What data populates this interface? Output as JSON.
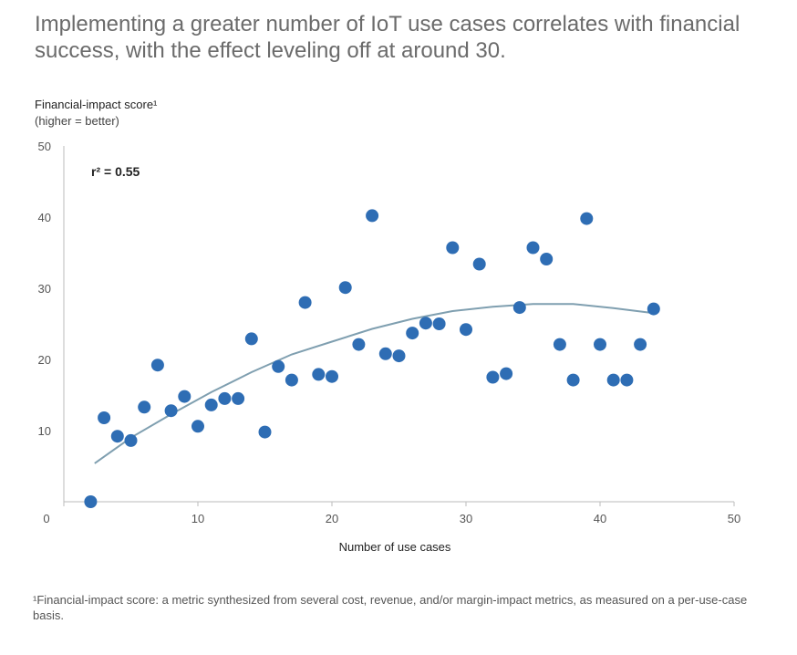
{
  "title": "Implementing a greater number of IoT use cases correlates with financial success, with the effect leveling off at around 30.",
  "footnote": "¹Financial-impact score: a metric synthesized from several cost, revenue, and/or margin-impact metrics, as measured on a per-use-case basis.",
  "chart_data": {
    "type": "scatter",
    "ylabel": "Financial-impact score¹",
    "ylabel_sub": "(higher = better)",
    "xlabel": "Number of use cases",
    "annotation": "r² = 0.55",
    "xlim": [
      0,
      50
    ],
    "ylim": [
      0,
      50
    ],
    "xticks": [
      0,
      10,
      20,
      30,
      40,
      50
    ],
    "yticks": [
      10,
      20,
      30,
      40,
      50
    ],
    "grid": false,
    "colors": {
      "points": "#2e6db4",
      "trend": "#7f9fb0",
      "axis": "#bbbbbb"
    },
    "points": [
      [
        2,
        0
      ],
      [
        3,
        11.8
      ],
      [
        4,
        9.2
      ],
      [
        5,
        8.6
      ],
      [
        6,
        13.3
      ],
      [
        7,
        19.2
      ],
      [
        8,
        12.8
      ],
      [
        9,
        14.8
      ],
      [
        10,
        10.6
      ],
      [
        11,
        13.6
      ],
      [
        12,
        14.5
      ],
      [
        13,
        14.5
      ],
      [
        14,
        22.9
      ],
      [
        15,
        9.8
      ],
      [
        16,
        19
      ],
      [
        17,
        17.1
      ],
      [
        18,
        28
      ],
      [
        19,
        17.9
      ],
      [
        20,
        17.6
      ],
      [
        21,
        30.1
      ],
      [
        22,
        22.1
      ],
      [
        23,
        40.2
      ],
      [
        24,
        20.8
      ],
      [
        25,
        20.5
      ],
      [
        26,
        23.7
      ],
      [
        27,
        25.1
      ],
      [
        28,
        25
      ],
      [
        29,
        35.7
      ],
      [
        30,
        24.2
      ],
      [
        31,
        33.4
      ],
      [
        32,
        17.5
      ],
      [
        33,
        18
      ],
      [
        34,
        27.3
      ],
      [
        35,
        35.7
      ],
      [
        36,
        34.1
      ],
      [
        37,
        22.1
      ],
      [
        38,
        17.1
      ],
      [
        39,
        39.8
      ],
      [
        40,
        22.1
      ],
      [
        41,
        17.1
      ],
      [
        42,
        17.1
      ],
      [
        43,
        22.1
      ],
      [
        44,
        27.1
      ]
    ],
    "trendline": [
      [
        2.3,
        5.4
      ],
      [
        5,
        9
      ],
      [
        8,
        12.3
      ],
      [
        11,
        15.4
      ],
      [
        14,
        18.2
      ],
      [
        17,
        20.7
      ],
      [
        20,
        22.5
      ],
      [
        23,
        24.3
      ],
      [
        26,
        25.7
      ],
      [
        29,
        26.8
      ],
      [
        32,
        27.4
      ],
      [
        35,
        27.8
      ],
      [
        38,
        27.8
      ],
      [
        41,
        27.2
      ],
      [
        44,
        26.5
      ]
    ]
  }
}
